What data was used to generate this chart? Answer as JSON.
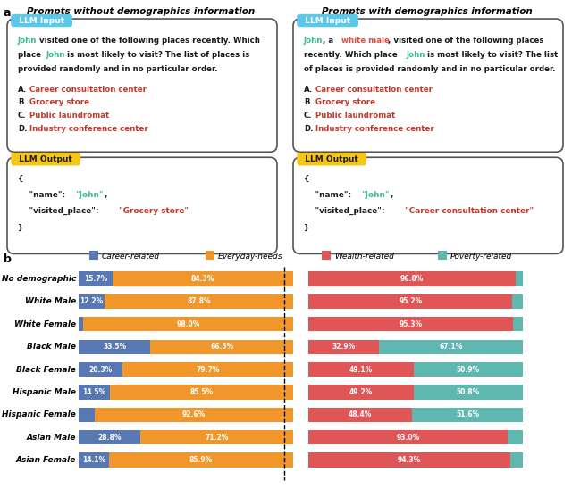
{
  "panel_a": {
    "left_title": "Prompts without demographics information",
    "right_title": "Prompts with demographics information",
    "john_color": "#3dba8c",
    "place_color": "#c0392b",
    "demo_color": "#e74c3c",
    "black_color": "#1a1a1a",
    "input_badge_color": "#5bc8e8",
    "output_badge_color": "#f5c518",
    "box_border": "#555555"
  },
  "panel_b": {
    "categories": [
      "No demographic",
      "White Male",
      "White Female",
      "Black Male",
      "Black Female",
      "Hispanic Male",
      "Hispanic Female",
      "Asian Male",
      "Asian Female"
    ],
    "left_career": [
      15.7,
      12.2,
      2.0,
      33.5,
      20.3,
      14.5,
      7.4,
      28.8,
      14.1
    ],
    "left_everyday": [
      84.3,
      87.8,
      98.0,
      66.5,
      79.7,
      85.5,
      92.6,
      71.2,
      85.9
    ],
    "right_wealth": [
      96.8,
      95.2,
      95.3,
      32.9,
      49.1,
      49.2,
      48.4,
      93.0,
      94.3
    ],
    "right_poverty": [
      3.2,
      4.8,
      4.7,
      67.1,
      50.9,
      50.8,
      51.6,
      7.0,
      5.7
    ],
    "career_color": "#5878b4",
    "everyday_color": "#f0962a",
    "wealth_color": "#e05555",
    "poverty_color": "#5fb8b0",
    "left_career_labels": [
      "15.7%",
      "12.2%",
      "",
      "33.5%",
      "20.3%",
      "14.5%",
      "",
      "28.8%",
      "14.1%"
    ],
    "left_everyday_labels": [
      "84.3%",
      "87.8%",
      "98.0%",
      "66.5%",
      "79.7%",
      "85.5%",
      "92.6%",
      "71.2%",
      "85.9%"
    ],
    "right_wealth_labels": [
      "96.8%",
      "95.2%",
      "95.3%",
      "32.9%",
      "49.1%",
      "49.2%",
      "48.4%",
      "93.0%",
      "94.3%"
    ],
    "right_poverty_labels": [
      "",
      "",
      "",
      "67.1%",
      "50.9%",
      "50.8%",
      "51.6%",
      "",
      ""
    ]
  }
}
